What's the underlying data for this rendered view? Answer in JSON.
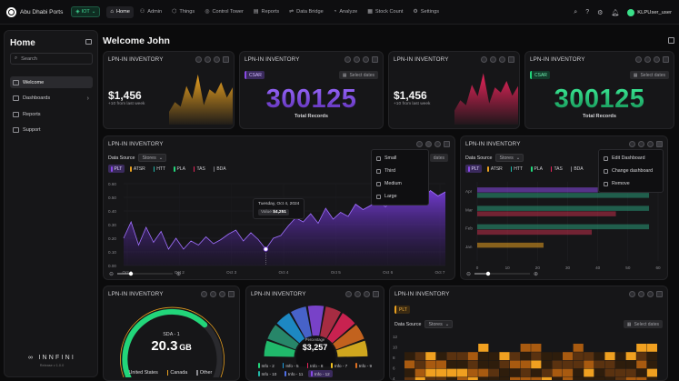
{
  "brand": {
    "name": "Abu Dhabi Ports"
  },
  "env_selector": {
    "label": "IOT"
  },
  "nav": [
    {
      "label": "Home",
      "icon": "home-icon",
      "glyph": "⌂",
      "active": true
    },
    {
      "label": "Admin",
      "icon": "admin-icon",
      "glyph": "⚇",
      "active": false
    },
    {
      "label": "Things",
      "icon": "things-icon",
      "glyph": "⬡",
      "active": false
    },
    {
      "label": "Control Tower",
      "icon": "control-tower-icon",
      "glyph": "◎",
      "active": false
    },
    {
      "label": "Reports",
      "icon": "reports-icon",
      "glyph": "▤",
      "active": false
    },
    {
      "label": "Data Bridge",
      "icon": "data-bridge-icon",
      "glyph": "⇌",
      "active": false
    },
    {
      "label": "Analyze",
      "icon": "analyze-icon",
      "glyph": "◔",
      "active": false
    },
    {
      "label": "Stock Count",
      "icon": "stock-count-icon",
      "glyph": "▦",
      "active": false
    },
    {
      "label": "Settings",
      "icon": "settings-icon",
      "glyph": "⚙",
      "active": false
    }
  ],
  "user": {
    "name": "KLPUser_user"
  },
  "sidebar": {
    "title": "Home",
    "search_placeholder": "Search",
    "items": [
      {
        "label": "Welcome",
        "active": true,
        "chevron": false
      },
      {
        "label": "Dashboards",
        "active": false,
        "chevron": true
      },
      {
        "label": "Reports",
        "active": false,
        "chevron": false
      },
      {
        "label": "Support",
        "active": false,
        "chevron": false
      }
    ],
    "logo_text": "INNFINI",
    "release_text": "Release v 1.0.0"
  },
  "page": {
    "welcome": "Welcome John"
  },
  "cards": {
    "kpi1": {
      "title": "LPN-IN INVENTORY",
      "value": "$1,456",
      "sub": "+10 from last week",
      "color": "#e8a020"
    },
    "rec1": {
      "title": "LPN-IN INVENTORY",
      "tag": "CSAR",
      "select_dates": "Select dates",
      "value": "300125",
      "label": "Total Records"
    },
    "kpi2": {
      "title": "LPN-IN INVENTORY",
      "value": "$1,456",
      "sub": "+10 from last week",
      "color": "#e8245a"
    },
    "rec2": {
      "title": "LPN-IN INVENTORY",
      "tag": "CSAR",
      "select_dates": "Select dates",
      "value": "300125",
      "label": "Total Records"
    },
    "line": {
      "title": "LPN-IN INVENTORY",
      "data_source_label": "Data Source",
      "data_source_value": "Stores",
      "select_dates": "dates",
      "series_chips": [
        "PLT",
        "ATSR",
        "HTT",
        "PLA",
        "TAS",
        "BDA"
      ],
      "tooltip": {
        "date": "Tuesday, Oct 4, 2024",
        "value_label": "Value",
        "value": "$4,251"
      },
      "size_menu": [
        "Small",
        "Third",
        "Medium",
        "Large"
      ]
    },
    "hbar": {
      "title": "LPN-IN INVENTORY",
      "data_source_label": "Data Source",
      "data_source_value": "Stores",
      "series_chips": [
        "PLT",
        "ATSR",
        "HTT",
        "PLA",
        "TAS",
        "BDA"
      ],
      "menu": [
        "Edit Dashboard",
        "Change dashboard",
        "Remove"
      ]
    },
    "gauge": {
      "title": "LPN-IN INVENTORY",
      "label": "SDA - 1",
      "value": "20.3",
      "unit": "GB",
      "fraction": 0.68,
      "legend": [
        {
          "name": "United States",
          "color": "#22d67a"
        },
        {
          "name": "Canada",
          "color": "#e8a020"
        },
        {
          "name": "Other",
          "color": "#8a8a8f"
        }
      ]
    },
    "donut": {
      "title": "LPN-IN INVENTORY",
      "center_label": "Percentage",
      "center_value": "$3,257",
      "legend": [
        {
          "name": "Info - 2",
          "color": "#22d67a"
        },
        {
          "name": "Info - 5",
          "color": "#1e9ce0"
        },
        {
          "name": "Info - 8",
          "color": "#e8245a"
        },
        {
          "name": "Info - 7",
          "color": "#f0c020"
        },
        {
          "name": "Info - 9",
          "color": "#e07020"
        },
        {
          "name": "Info - 10",
          "color": "#22b8a8"
        },
        {
          "name": "Info - 11",
          "color": "#5070e8"
        },
        {
          "name": "Info - 12",
          "color": "#8a4ae8"
        }
      ]
    },
    "heat": {
      "title": "LPN-IN INVENTORY",
      "tag": "PLT",
      "data_source_label": "Data Source",
      "data_source_value": "Stores",
      "select_dates": "Select dates"
    }
  },
  "chart_data": [
    {
      "type": "area",
      "chart": "kpi1-sparkline",
      "values": [
        20,
        35,
        28,
        60,
        40,
        78,
        30,
        55,
        48,
        66,
        42,
        58
      ],
      "color": "#e8a020"
    },
    {
      "type": "area",
      "chart": "kpi2-sparkline",
      "values": [
        22,
        38,
        30,
        62,
        44,
        80,
        33,
        58,
        50,
        68,
        45,
        60
      ],
      "color": "#e8245a"
    },
    {
      "type": "line",
      "chart": "line-chart",
      "x_ticks": [
        "Oct 1",
        "Oct 2",
        "Oct 3",
        "Oct 4",
        "Oct 5",
        "Oct 6",
        "Oct 7"
      ],
      "y_ticks": [
        "0.60",
        "0.50",
        "0.40",
        "0.30",
        "0.20",
        "0.10",
        "0.00"
      ],
      "ylim": [
        0,
        0.6
      ],
      "series": [
        {
          "name": "PLT",
          "values": [
            0.2,
            0.32,
            0.15,
            0.28,
            0.17,
            0.25,
            0.12,
            0.2,
            0.12,
            0.18,
            0.15,
            0.21,
            0.16,
            0.19,
            0.23,
            0.26,
            0.18,
            0.24,
            0.19,
            0.12,
            0.2,
            0.22,
            0.29,
            0.35,
            0.32,
            0.38,
            0.31,
            0.42,
            0.34,
            0.39,
            0.36,
            0.45,
            0.41,
            0.44,
            0.48,
            0.43,
            0.5,
            0.46,
            0.52,
            0.48,
            0.49,
            0.55,
            0.51,
            0.54
          ]
        }
      ]
    },
    {
      "type": "bar",
      "chart": "hbar-chart",
      "orientation": "horizontal",
      "categories": [
        "Apr",
        "Mar",
        "Feb",
        "Jan"
      ],
      "x_ticks": [
        "0",
        "10",
        "20",
        "30",
        "40",
        "50",
        "60"
      ],
      "xlim": [
        0,
        60
      ],
      "series": [
        {
          "name": "PLT",
          "values": [
            40,
            0,
            0,
            0
          ],
          "color": "#8a4ae8"
        },
        {
          "name": "ATSR",
          "values": [
            0,
            0,
            0,
            22
          ],
          "color": "#e8a020"
        },
        {
          "name": "HTT",
          "values": [
            57,
            57,
            57,
            0
          ],
          "color": "#2a9a78"
        },
        {
          "name": "TAS",
          "values": [
            0,
            46,
            38,
            0
          ],
          "color": "#c0304a"
        }
      ]
    },
    {
      "type": "heatmap",
      "chart": "heatmap",
      "y_ticks": [
        "12",
        "10",
        "8",
        "6",
        "4"
      ]
    }
  ]
}
